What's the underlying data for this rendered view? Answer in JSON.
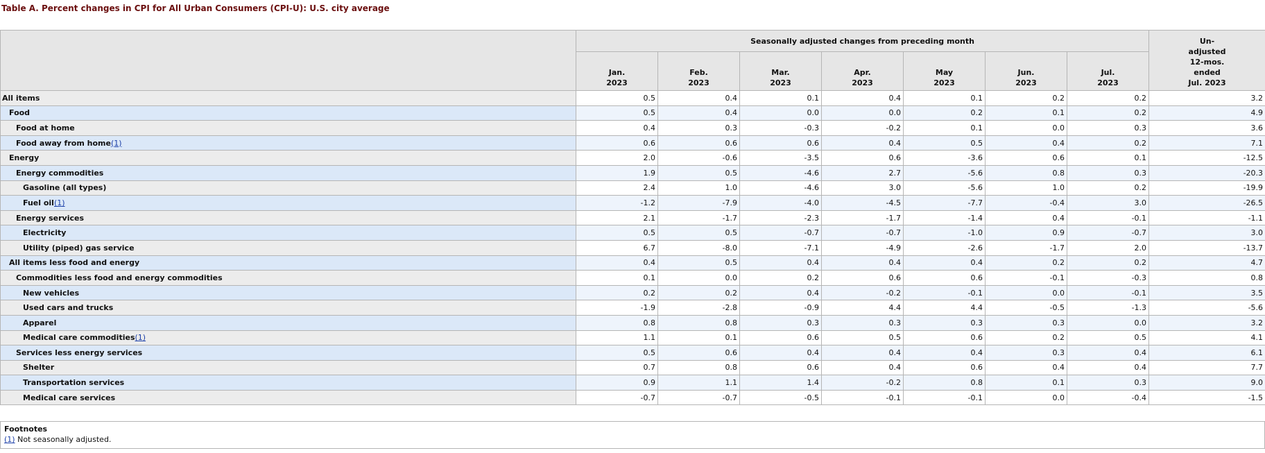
{
  "caption": "Table A. Percent changes in CPI for All Urban Consumers (CPI-U): U.S. city average",
  "header": {
    "group_label": "Seasonally adjusted changes from preceding month",
    "months": [
      {
        "l1": "Jan.",
        "l2": "2023"
      },
      {
        "l1": "Feb.",
        "l2": "2023"
      },
      {
        "l1": "Mar.",
        "l2": "2023"
      },
      {
        "l1": "Apr.",
        "l2": "2023"
      },
      {
        "l1": "May",
        "l2": "2023"
      },
      {
        "l1": "Jun.",
        "l2": "2023"
      },
      {
        "l1": "Jul.",
        "l2": "2023"
      }
    ],
    "unadjusted_lines": [
      "Un-",
      "adjusted",
      "12-mos.",
      "ended",
      "Jul. 2023"
    ]
  },
  "rows": [
    {
      "label": "All items",
      "indent": 0,
      "fn": "",
      "values": [
        "0.5",
        "0.4",
        "0.1",
        "0.4",
        "0.1",
        "0.2",
        "0.2",
        "3.2"
      ]
    },
    {
      "label": "Food",
      "indent": 1,
      "fn": "",
      "values": [
        "0.5",
        "0.4",
        "0.0",
        "0.0",
        "0.2",
        "0.1",
        "0.2",
        "4.9"
      ]
    },
    {
      "label": "Food at home",
      "indent": 2,
      "fn": "",
      "values": [
        "0.4",
        "0.3",
        "-0.3",
        "-0.2",
        "0.1",
        "0.0",
        "0.3",
        "3.6"
      ]
    },
    {
      "label": "Food away from home",
      "indent": 2,
      "fn": "(1)",
      "values": [
        "0.6",
        "0.6",
        "0.6",
        "0.4",
        "0.5",
        "0.4",
        "0.2",
        "7.1"
      ]
    },
    {
      "label": "Energy",
      "indent": 1,
      "fn": "",
      "values": [
        "2.0",
        "-0.6",
        "-3.5",
        "0.6",
        "-3.6",
        "0.6",
        "0.1",
        "-12.5"
      ]
    },
    {
      "label": "Energy commodities",
      "indent": 2,
      "fn": "",
      "values": [
        "1.9",
        "0.5",
        "-4.6",
        "2.7",
        "-5.6",
        "0.8",
        "0.3",
        "-20.3"
      ]
    },
    {
      "label": "Gasoline (all types)",
      "indent": 3,
      "fn": "",
      "values": [
        "2.4",
        "1.0",
        "-4.6",
        "3.0",
        "-5.6",
        "1.0",
        "0.2",
        "-19.9"
      ]
    },
    {
      "label": "Fuel oil",
      "indent": 3,
      "fn": "(1)",
      "values": [
        "-1.2",
        "-7.9",
        "-4.0",
        "-4.5",
        "-7.7",
        "-0.4",
        "3.0",
        "-26.5"
      ]
    },
    {
      "label": "Energy services",
      "indent": 2,
      "fn": "",
      "values": [
        "2.1",
        "-1.7",
        "-2.3",
        "-1.7",
        "-1.4",
        "0.4",
        "-0.1",
        "-1.1"
      ]
    },
    {
      "label": "Electricity",
      "indent": 3,
      "fn": "",
      "values": [
        "0.5",
        "0.5",
        "-0.7",
        "-0.7",
        "-1.0",
        "0.9",
        "-0.7",
        "3.0"
      ]
    },
    {
      "label": "Utility (piped) gas service",
      "indent": 3,
      "fn": "",
      "values": [
        "6.7",
        "-8.0",
        "-7.1",
        "-4.9",
        "-2.6",
        "-1.7",
        "2.0",
        "-13.7"
      ]
    },
    {
      "label": "All items less food and energy",
      "indent": 1,
      "fn": "",
      "values": [
        "0.4",
        "0.5",
        "0.4",
        "0.4",
        "0.4",
        "0.2",
        "0.2",
        "4.7"
      ]
    },
    {
      "label": "Commodities less food and energy commodities",
      "indent": 2,
      "fn": "",
      "values": [
        "0.1",
        "0.0",
        "0.2",
        "0.6",
        "0.6",
        "-0.1",
        "-0.3",
        "0.8"
      ]
    },
    {
      "label": "New vehicles",
      "indent": 3,
      "fn": "",
      "values": [
        "0.2",
        "0.2",
        "0.4",
        "-0.2",
        "-0.1",
        "0.0",
        "-0.1",
        "3.5"
      ]
    },
    {
      "label": "Used cars and trucks",
      "indent": 3,
      "fn": "",
      "values": [
        "-1.9",
        "-2.8",
        "-0.9",
        "4.4",
        "4.4",
        "-0.5",
        "-1.3",
        "-5.6"
      ]
    },
    {
      "label": "Apparel",
      "indent": 3,
      "fn": "",
      "values": [
        "0.8",
        "0.8",
        "0.3",
        "0.3",
        "0.3",
        "0.3",
        "0.0",
        "3.2"
      ]
    },
    {
      "label": "Medical care commodities",
      "indent": 3,
      "fn": "(1)",
      "values": [
        "1.1",
        "0.1",
        "0.6",
        "0.5",
        "0.6",
        "0.2",
        "0.5",
        "4.1"
      ]
    },
    {
      "label": "Services less energy services",
      "indent": 2,
      "fn": "",
      "values": [
        "0.5",
        "0.6",
        "0.4",
        "0.4",
        "0.4",
        "0.3",
        "0.4",
        "6.1"
      ]
    },
    {
      "label": "Shelter",
      "indent": 3,
      "fn": "",
      "values": [
        "0.7",
        "0.8",
        "0.6",
        "0.4",
        "0.6",
        "0.4",
        "0.4",
        "7.7"
      ]
    },
    {
      "label": "Transportation services",
      "indent": 3,
      "fn": "",
      "values": [
        "0.9",
        "1.1",
        "1.4",
        "-0.2",
        "0.8",
        "0.1",
        "0.3",
        "9.0"
      ]
    },
    {
      "label": "Medical care services",
      "indent": 3,
      "fn": "",
      "values": [
        "-0.7",
        "-0.7",
        "-0.5",
        "-0.1",
        "-0.1",
        "0.0",
        "-0.4",
        "-1.5"
      ]
    }
  ],
  "footnotes": {
    "title": "Footnotes",
    "items": [
      {
        "marker": "(1)",
        "text": " Not seasonally adjusted."
      }
    ]
  }
}
